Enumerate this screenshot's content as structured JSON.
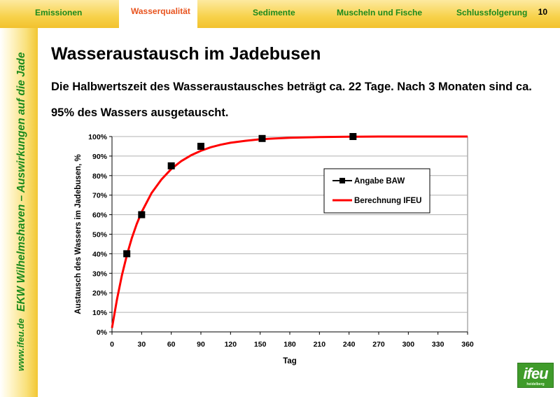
{
  "nav": {
    "tabs": [
      {
        "label": "Emissionen"
      },
      {
        "label": "Wasserqualität",
        "active": true
      },
      {
        "label": "Sedimente"
      },
      {
        "label": "Muscheln und Fische"
      },
      {
        "label": "Schlussfolgerung"
      }
    ],
    "page_number": "10"
  },
  "sidebar": {
    "title": "EKW Wilhelmshaven – Auswirkungen auf die Jade",
    "url": "www.ifeu.de"
  },
  "slide": {
    "title": "Wasseraustausch im Jadebusen",
    "subtitle": "Die Halbwertszeit des Wasseraustausches beträgt ca. 22 Tage. Nach 3 Monaten sind ca. 95% des Wassers ausgetauscht."
  },
  "logo": {
    "text": "ifeu",
    "subtext": "heidelberg"
  },
  "colors": {
    "accent_green": "#1c8a1c",
    "active_tab": "#e8531e",
    "curve": "#ff0000",
    "marker": "#000000"
  },
  "chart_data": {
    "type": "line",
    "xlabel": "Tag",
    "ylabel": "Austausch des Wassers im Jadebusen, %",
    "xlim": [
      0,
      360
    ],
    "ylim": [
      0,
      100
    ],
    "x_ticks": [
      0,
      30,
      60,
      90,
      120,
      150,
      180,
      210,
      240,
      270,
      300,
      330,
      360
    ],
    "y_ticks": [
      0,
      10,
      20,
      30,
      40,
      50,
      60,
      70,
      80,
      90,
      100
    ],
    "y_tick_labels": [
      "0%",
      "10%",
      "20%",
      "30%",
      "40%",
      "50%",
      "60%",
      "70%",
      "80%",
      "90%",
      "100%"
    ],
    "grid": "horizontal",
    "legend_position": "right",
    "series": [
      {
        "name": "Angabe BAW",
        "style": "markers",
        "color": "#000000",
        "x": [
          15,
          30,
          60,
          90,
          152,
          244
        ],
        "y": [
          40,
          60,
          85,
          95,
          99,
          100
        ]
      },
      {
        "name": "Berechnung IFEU",
        "style": "line",
        "color": "#ff0000",
        "x": [
          0,
          5,
          10,
          15,
          20,
          25,
          30,
          40,
          50,
          60,
          70,
          80,
          90,
          100,
          110,
          120,
          135,
          150,
          165,
          180,
          210,
          240,
          270,
          300,
          330,
          360
        ],
        "y": [
          2,
          16.6,
          28.9,
          39.2,
          47.9,
          55.2,
          61.3,
          71.0,
          78.0,
          83.4,
          87.4,
          90.4,
          92.7,
          94.5,
          95.8,
          96.8,
          97.8,
          98.6,
          99.0,
          99.4,
          99.7,
          99.9,
          100,
          100,
          100,
          100
        ]
      }
    ]
  }
}
